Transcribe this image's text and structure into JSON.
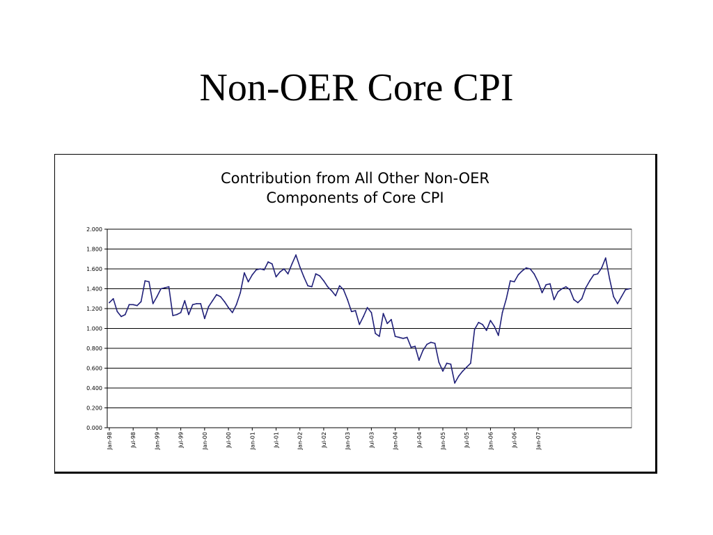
{
  "slide": {
    "title": "Non-OER Core CPI"
  },
  "chart_data": {
    "type": "line",
    "title_lines": [
      "Contribution from All Other Non-OER",
      "Components of Core CPI"
    ],
    "xlabel": "",
    "ylabel": "",
    "ylim": [
      0,
      2.0
    ],
    "yticks": [
      "0.000",
      "0.200",
      "0.400",
      "0.600",
      "0.800",
      "1.000",
      "1.200",
      "1.400",
      "1.600",
      "1.800",
      "2.000"
    ],
    "xticks": [
      "Jan-98",
      "Jul-98",
      "Jan-99",
      "Jul-99",
      "Jan-00",
      "Jul-00",
      "Jan-01",
      "Jul-01",
      "Jan-02",
      "Jul-02",
      "Jan-03",
      "Jul-03",
      "Jan-04",
      "Jul-04",
      "Jan-05",
      "Jul-05",
      "Jan-06",
      "Jul-06",
      "Jan-07"
    ],
    "x_range": [
      "Jan-98",
      "Mar-07"
    ],
    "grid": "horizontal",
    "line_color": "#1f1f78",
    "series": [
      {
        "values": [
          1.26,
          1.3,
          1.17,
          1.12,
          1.14,
          1.24,
          1.24,
          1.23,
          1.27,
          1.48,
          1.47,
          1.25,
          1.32,
          1.4,
          1.41,
          1.42,
          1.13,
          1.14,
          1.16,
          1.28,
          1.14,
          1.24,
          1.25,
          1.25,
          1.1,
          1.22,
          1.28,
          1.34,
          1.32,
          1.27,
          1.21,
          1.16,
          1.24,
          1.36,
          1.56,
          1.47,
          1.54,
          1.59,
          1.6,
          1.59,
          1.67,
          1.65,
          1.52,
          1.57,
          1.6,
          1.55,
          1.65,
          1.74,
          1.62,
          1.52,
          1.43,
          1.42,
          1.55,
          1.53,
          1.48,
          1.42,
          1.38,
          1.33,
          1.43,
          1.39,
          1.29,
          1.17,
          1.18,
          1.04,
          1.12,
          1.21,
          1.16,
          0.95,
          0.92,
          1.15,
          1.05,
          1.09,
          0.92,
          0.91,
          0.9,
          0.91,
          0.81,
          0.82,
          0.68,
          0.78,
          0.84,
          0.86,
          0.85,
          0.66,
          0.57,
          0.65,
          0.64,
          0.45,
          0.52,
          0.57,
          0.61,
          0.65,
          0.99,
          1.06,
          1.04,
          0.98,
          1.08,
          1.02,
          0.93,
          1.16,
          1.3,
          1.48,
          1.47,
          1.54,
          1.58,
          1.61,
          1.6,
          1.55,
          1.47,
          1.36,
          1.44,
          1.45,
          1.29,
          1.37,
          1.4,
          1.42,
          1.39,
          1.29,
          1.26,
          1.3,
          1.41,
          1.48,
          1.54,
          1.55,
          1.61,
          1.71,
          1.5,
          1.32,
          1.25,
          1.32,
          1.39,
          1.4
        ]
      }
    ]
  }
}
